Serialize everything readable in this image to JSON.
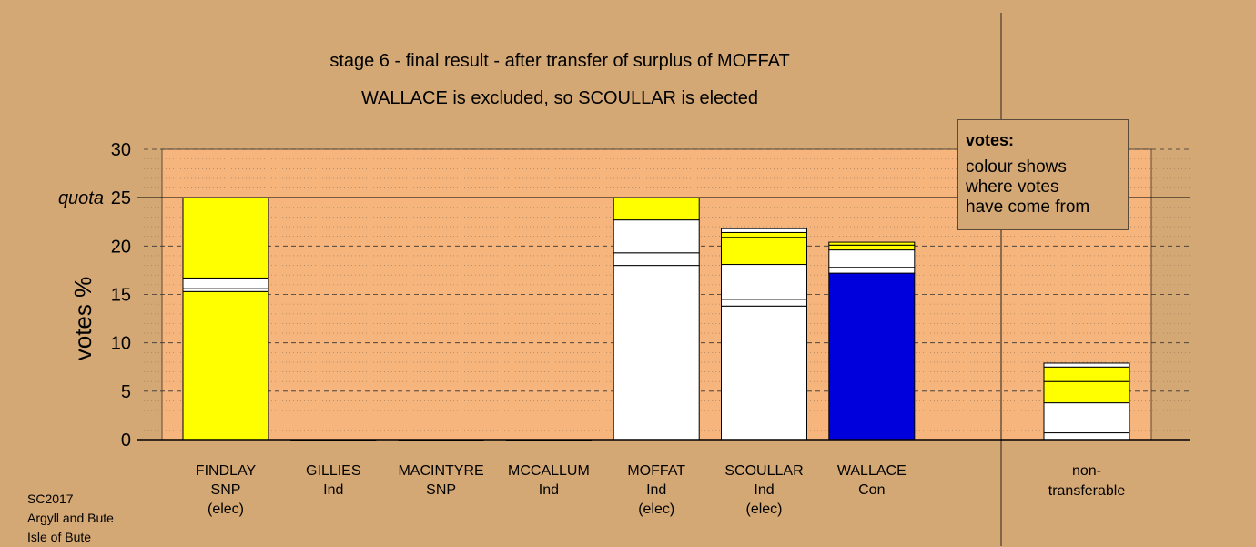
{
  "titles": {
    "line1": "stage 6 - final result - after transfer of surplus of MOFFAT",
    "line2": "WALLACE is excluded, so SCOULLAR is elected"
  },
  "legend": {
    "title": "votes:",
    "line1": "colour shows",
    "line2": "where votes",
    "line3": "have come from"
  },
  "footer": {
    "line1": "SC2017",
    "line2": "Argyll and Bute",
    "line3": "Isle of Bute"
  },
  "colors": {
    "background": "#d4a874",
    "plot_area": "#f5b57c",
    "snp": "#ffff00",
    "con": "#0000dd",
    "ind": "#ffffff"
  },
  "chart_data": {
    "type": "bar",
    "stacked": true,
    "ylabel": "votes %",
    "ylim": [
      0,
      30
    ],
    "yticks": [
      0,
      5,
      10,
      15,
      20,
      25,
      30
    ],
    "quota": {
      "label": "quota",
      "value": 25
    },
    "grid": true,
    "legend_position": "top-right",
    "candidates": [
      {
        "name": "FINDLAY",
        "party": "SNP",
        "status": "(elec)",
        "segments": [
          {
            "value": 15.3,
            "color": "#ffff00"
          },
          {
            "value": 0.3,
            "color": "#ffffff"
          },
          {
            "value": 1.1,
            "color": "#ffffff"
          },
          {
            "value": 8.3,
            "color": "#ffff00"
          }
        ]
      },
      {
        "name": "GILLIES",
        "party": "Ind",
        "status": "",
        "segments": []
      },
      {
        "name": "MACINTYRE",
        "party": "SNP",
        "status": "",
        "segments": []
      },
      {
        "name": "MCCALLUM",
        "party": "Ind",
        "status": "",
        "segments": []
      },
      {
        "name": "MOFFAT",
        "party": "Ind",
        "status": "(elec)",
        "segments": [
          {
            "value": 18.0,
            "color": "#ffffff"
          },
          {
            "value": 1.3,
            "color": "#ffffff"
          },
          {
            "value": 3.4,
            "color": "#ffffff"
          },
          {
            "value": 2.3,
            "color": "#ffff00"
          }
        ]
      },
      {
        "name": "SCOULLAR",
        "party": "Ind",
        "status": "(elec)",
        "segments": [
          {
            "value": 13.8,
            "color": "#ffffff"
          },
          {
            "value": 0.7,
            "color": "#ffffff"
          },
          {
            "value": 3.6,
            "color": "#ffffff"
          },
          {
            "value": 2.8,
            "color": "#ffff00"
          },
          {
            "value": 0.5,
            "color": "#ffff00"
          },
          {
            "value": 0.4,
            "color": "#ffffff"
          }
        ]
      },
      {
        "name": "WALLACE",
        "party": "Con",
        "status": "",
        "segments": [
          {
            "value": 17.2,
            "color": "#0000dd"
          },
          {
            "value": 0.6,
            "color": "#ffffff"
          },
          {
            "value": 1.8,
            "color": "#ffffff"
          },
          {
            "value": 0.5,
            "color": "#ffff00"
          },
          {
            "value": 0.3,
            "color": "#ffff00"
          }
        ]
      }
    ],
    "nontransferable": {
      "label1": "non-",
      "label2": "transferable",
      "segments": [
        {
          "value": 0.7,
          "color": "#ffffff"
        },
        {
          "value": 3.1,
          "color": "#ffffff"
        },
        {
          "value": 2.2,
          "color": "#ffff00"
        },
        {
          "value": 1.5,
          "color": "#ffff00"
        },
        {
          "value": 0.4,
          "color": "#ffffff"
        }
      ]
    }
  }
}
